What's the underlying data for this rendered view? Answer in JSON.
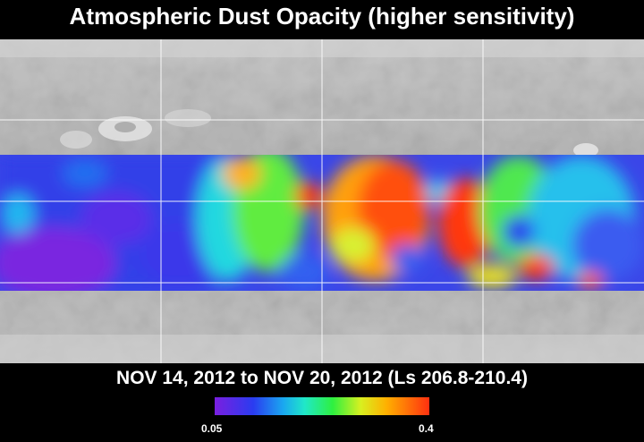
{
  "title": "Atmospheric Dust Opacity (higher sensitivity)",
  "subtitle": "NOV 14, 2012 to NOV 20, 2012 (Ls 206.8-210.4)",
  "colorbar": {
    "min_label": "0.05",
    "max_label": "0.4",
    "colors": [
      "#7a1fe0",
      "#2a3cf0",
      "#1aa8f0",
      "#20e8c8",
      "#2ef040",
      "#d8f020",
      "#ffb000",
      "#ff3010"
    ]
  },
  "map": {
    "base_color": "#b8b8b8",
    "gridline_color": "#ffffff"
  }
}
